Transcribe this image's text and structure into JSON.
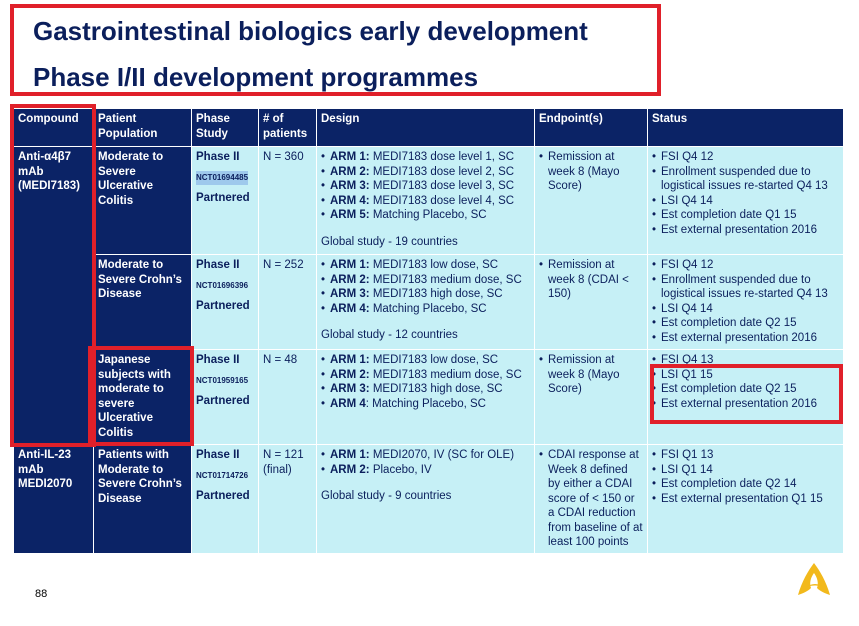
{
  "title": {
    "line1": "Gastrointestinal biologics early development",
    "line2": "Phase I/II development programmes"
  },
  "headers": {
    "compound": "Compound",
    "population": "Patient Population",
    "phase": "Phase Study",
    "patients": "# of patients",
    "design": "Design",
    "endpoint": "Endpoint(s)",
    "status": "Status"
  },
  "compounds": {
    "c1": "Anti-α4β7 mAb (MEDI7183)",
    "c2": "Anti-IL-23 mAb MEDI2070"
  },
  "rows": [
    {
      "population": "Moderate to Severe Ulcerative Colitis",
      "phase": "Phase II",
      "nct": "NCT01694485",
      "partnered": "Partnered",
      "patients": "N = 360",
      "arms": [
        {
          "label": "ARM 1:",
          "text": " MEDI7183 dose level 1, SC"
        },
        {
          "label": "ARM 2:",
          "text": " MEDI7183 dose level 2, SC"
        },
        {
          "label": "ARM 3:",
          "text": " MEDI7183 dose level 3, SC"
        },
        {
          "label": "ARM 4:",
          "text": " MEDI7183 dose level 4, SC"
        },
        {
          "label": "ARM 5:",
          "text": " Matching Placebo, SC"
        }
      ],
      "global_prefix": "Global study - ",
      "global_count": "19 countries",
      "endpoint": "Remission at week 8 (Mayo Score)",
      "status": [
        "FSI Q4 12",
        "Enrollment suspended due to logistical issues re-started Q4 13",
        "LSI Q4 14",
        "Est completion  date Q1 15",
        "Est external presentation 2016"
      ]
    },
    {
      "population": "Moderate to Severe Crohn’s Disease",
      "phase": "Phase II",
      "nct": "NCT01696396",
      "partnered": "Partnered",
      "patients": "N = 252",
      "arms": [
        {
          "label": "ARM 1:",
          "text": " MEDI7183 low dose, SC"
        },
        {
          "label": "ARM 2:",
          "text": " MEDI7183 medium dose, SC"
        },
        {
          "label": "ARM 3:",
          "text": " MEDI7183 high dose, SC"
        },
        {
          "label": "ARM 4:",
          "text": " Matching Placebo, SC"
        }
      ],
      "global_prefix": "Global study - ",
      "global_count": "12 countries",
      "endpoint": "Remission at week 8 (CDAI < 150)",
      "status": [
        "FSI Q4 12",
        "Enrollment suspended due to logistical issues re-started Q4 13",
        "LSI Q4 14",
        "Est completion date Q2 15",
        "Est external presentation 2016"
      ]
    },
    {
      "population": "Japanese subjects with moderate to severe Ulcerative Colitis",
      "phase": "Phase II",
      "nct": "NCT01959165",
      "partnered": "Partnered",
      "patients": "N = 48",
      "arms": [
        {
          "label": "ARM 1:",
          "text": " MEDI7183 low dose, SC"
        },
        {
          "label": "ARM 2:",
          "text": " MEDI7183 medium dose, SC"
        },
        {
          "label": "ARM 3:",
          "text": " MEDI7183 high dose, SC"
        },
        {
          "label": "ARM 4",
          "text": ": Matching Placebo, SC"
        }
      ],
      "endpoint": "Remission at week 8 (Mayo Score)",
      "status": [
        "FSI Q4 13",
        "LSI Q1 15",
        "Est completion date Q2 15",
        "Est external presentation 2016"
      ]
    },
    {
      "population": "Patients with Moderate to Severe Crohn’s Disease",
      "phase": "Phase II",
      "nct": "NCT01714726",
      "partnered": "Partnered",
      "patients": "N = 121 (final)",
      "arms": [
        {
          "label": "ARM 1:",
          "text": " MEDI2070, IV (SC for OLE)"
        },
        {
          "label": "ARM 2:",
          "text": " Placebo, IV"
        }
      ],
      "global_prefix": "Global study - ",
      "global_count": "9 countries",
      "endpoint": "CDAI response at Week 8 defined by either a CDAI score of < 150 or a CDAI reduction from baseline of at least 100 points",
      "status": [
        "FSI Q1 13",
        "LSI Q1 14",
        "Est completion date Q2 14",
        "Est external presentation Q1 15"
      ]
    }
  ],
  "page_number": "88",
  "logo_icon": "astrazeneca-logo-icon",
  "colors": {
    "navy": "#0b2366",
    "cell": "#c6f0f6",
    "highlight": "#e0202a"
  }
}
